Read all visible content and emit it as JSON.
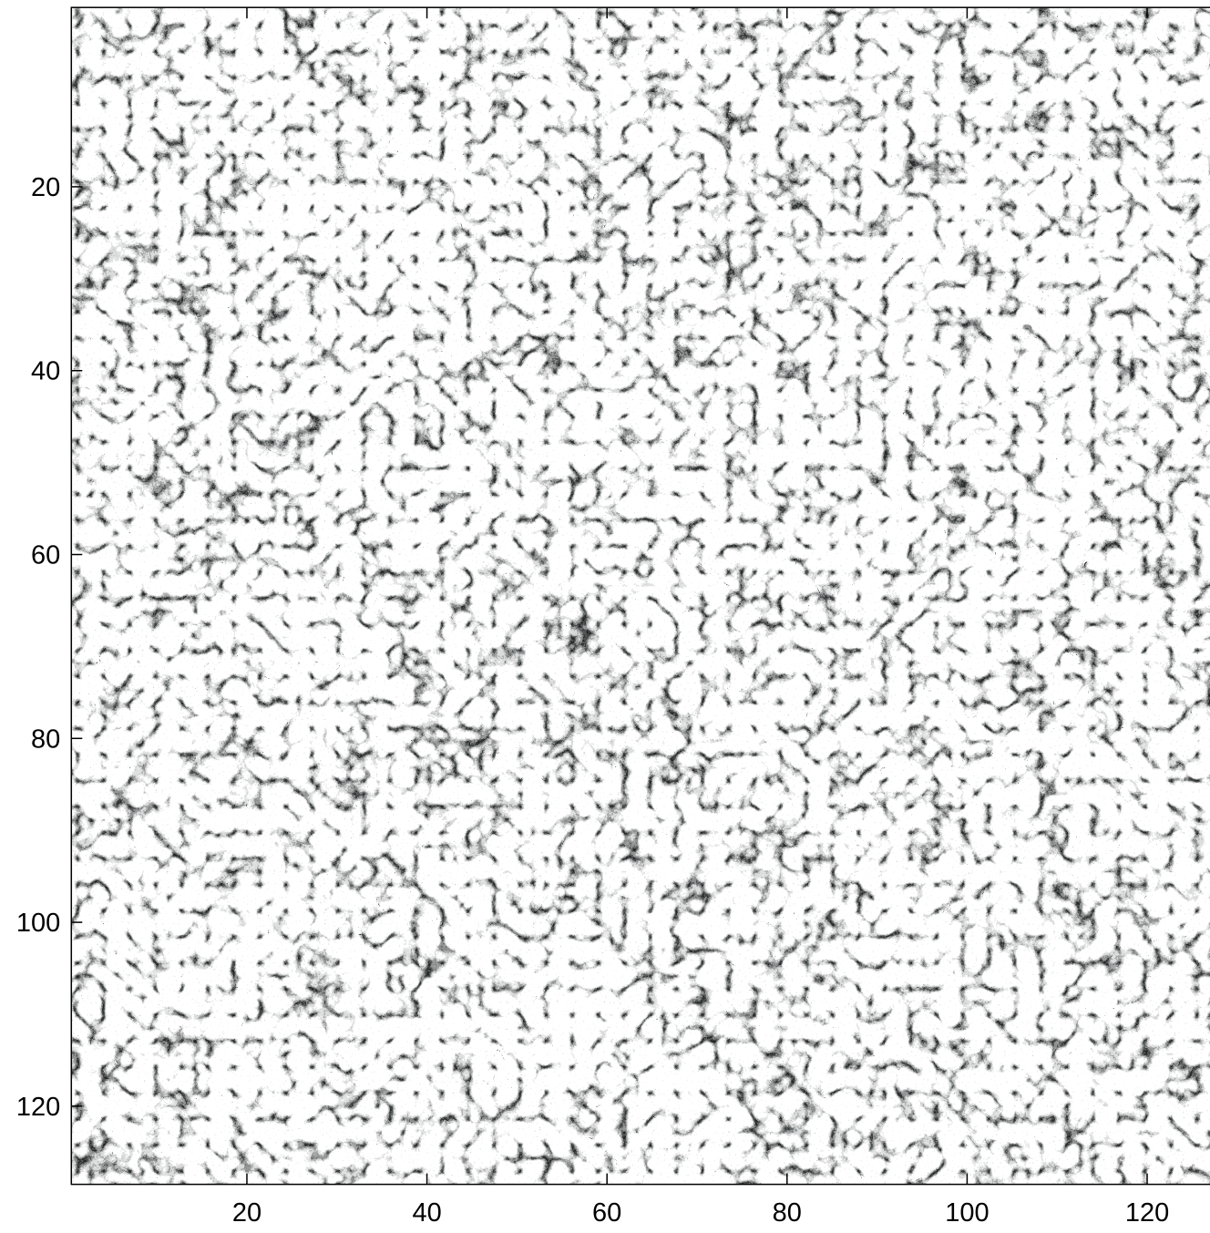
{
  "chart_data": {
    "type": "heatmap",
    "colormap": "gray",
    "xlim": [
      0.5,
      128.5
    ],
    "ylim": [
      0.5,
      128.5
    ],
    "y_direction": "reverse",
    "xticks": [
      20,
      40,
      60,
      80,
      100,
      120
    ],
    "yticks": [
      20,
      40,
      60,
      80,
      100,
      120
    ]
  }
}
